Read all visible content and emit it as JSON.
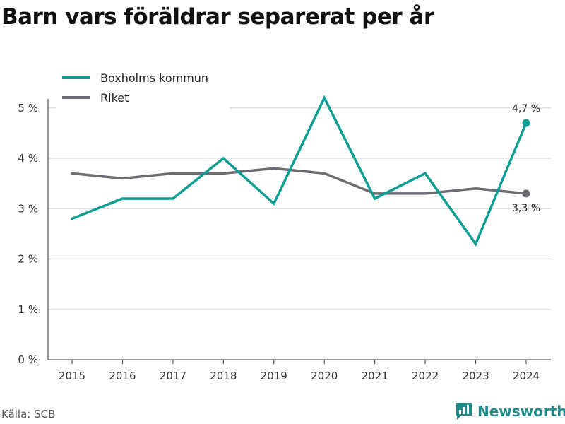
{
  "title": "Barn vars föräldrar separerat per år",
  "source": "Källa: SCB",
  "brand": "Newsworthy",
  "colors": {
    "boxholm": "#0c9e95",
    "riket": "#6d6c73",
    "grid": "#dcdcdc",
    "brand": "#1e8a8a"
  },
  "chart_data": {
    "type": "line",
    "categories": [
      "2015",
      "2016",
      "2017",
      "2018",
      "2019",
      "2020",
      "2021",
      "2022",
      "2023",
      "2024"
    ],
    "series": [
      {
        "name": "Boxholms kommun",
        "color": "#0c9e95",
        "values": [
          2.8,
          3.2,
          3.2,
          4.0,
          3.1,
          5.2,
          3.2,
          3.7,
          2.3,
          4.7
        ],
        "end_label": "4,7 %"
      },
      {
        "name": "Riket",
        "color": "#6d6c73",
        "values": [
          3.7,
          3.6,
          3.7,
          3.7,
          3.8,
          3.7,
          3.3,
          3.3,
          3.4,
          3.3
        ],
        "end_label": "3,3 %"
      }
    ],
    "yticks": [
      {
        "value": 0,
        "label": "0 %"
      },
      {
        "value": 1,
        "label": "1 %"
      },
      {
        "value": 2,
        "label": "2 %"
      },
      {
        "value": 3,
        "label": "3 %"
      },
      {
        "value": 4,
        "label": "4 %"
      },
      {
        "value": 5,
        "label": "5 %"
      }
    ],
    "ylim": [
      0,
      5.6
    ],
    "grid": true,
    "legend_position": "top-left"
  }
}
